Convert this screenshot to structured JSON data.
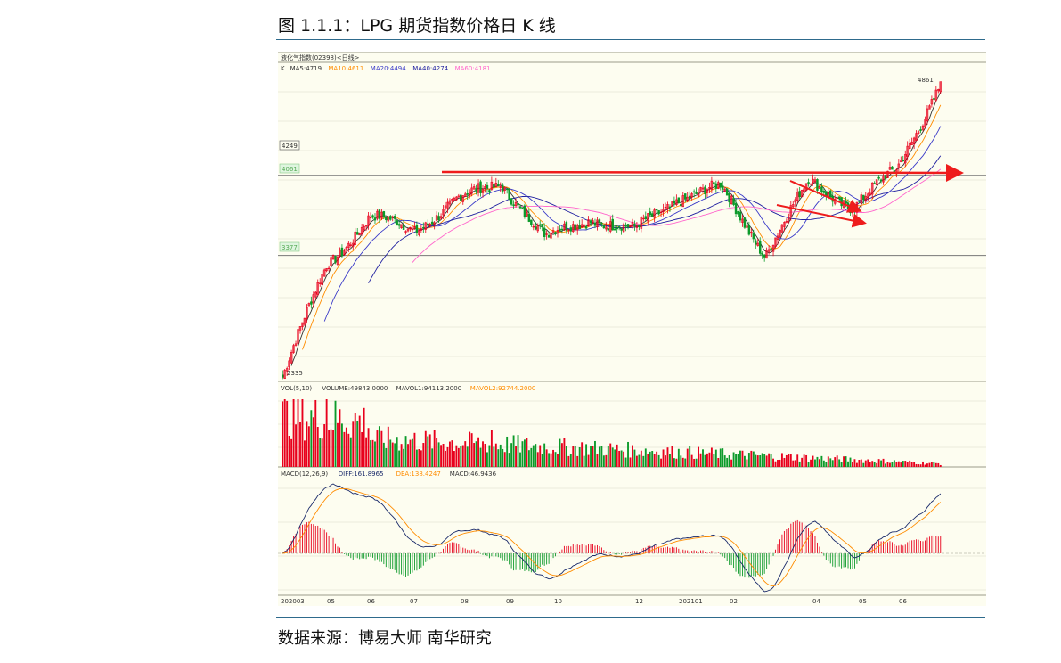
{
  "caption": "图 1.1.1：LPG 期货指数价格日 K 线",
  "source": "数据来源：博易大师 南华研究",
  "colors": {
    "up": "#e8001c",
    "down": "#0c9a2a",
    "panel_bg": "#fdfdf0",
    "grid": "#d9d9c8",
    "rule": "#2e6a8c",
    "ma5": "#333333",
    "ma10": "#ff8c00",
    "ma20": "#3a3ac8",
    "ma40": "#2020a0",
    "ma60": "#ff66cc",
    "arrow": "#ee1c1c",
    "diff": "#1a2a6a",
    "dea": "#ff8c00"
  },
  "chart_data": [
    {
      "type": "candlestick",
      "header": "液化气指数(02398)<日线>",
      "ma_legend": [
        {
          "name": "K",
          "text": "K"
        },
        {
          "name": "MA5",
          "text": "MA5:4719"
        },
        {
          "name": "MA10",
          "text": "MA10:4611"
        },
        {
          "name": "MA20",
          "text": "MA20:4494"
        },
        {
          "name": "MA40",
          "text": "MA40:4274"
        },
        {
          "name": "MA60",
          "text": "MA60:4181"
        }
      ],
      "price_labels": {
        "high": "4861",
        "low": "2335",
        "level_a": "4249",
        "level_b": "4061",
        "level_c": "3377"
      },
      "ylim": [
        2300,
        4950
      ],
      "x_tick_labels": [
        "202003",
        "05",
        "06",
        "07",
        "08",
        "09",
        "10",
        "12",
        "202101",
        "02",
        "04",
        "05",
        "06"
      ],
      "keypoints": [
        {
          "date": "202003",
          "close": 2335
        },
        {
          "date": "04",
          "close": 3300
        },
        {
          "date": "05",
          "close": 3700
        },
        {
          "date": "06",
          "close": 3600
        },
        {
          "date": "07",
          "close": 3850
        },
        {
          "date": "08",
          "close": 4000
        },
        {
          "date": "09",
          "close": 3520
        },
        {
          "date": "10",
          "close": 3700
        },
        {
          "date": "11",
          "close": 3580
        },
        {
          "date": "12",
          "close": 3870
        },
        {
          "date": "202101",
          "close": 3950
        },
        {
          "date": "02",
          "close": 3400
        },
        {
          "date": "03",
          "close": 4000
        },
        {
          "date": "04",
          "close": 3800
        },
        {
          "date": "05",
          "close": 4100
        },
        {
          "date": "06",
          "close": 4861
        }
      ]
    },
    {
      "type": "bar",
      "header_parts": [
        {
          "name": "VOL",
          "text": "VOL(5,10)"
        },
        {
          "name": "VOLUME",
          "text": "VOLUME:49843.0000"
        },
        {
          "name": "MAVOL1",
          "text": "MAVOL1:94113.2000"
        },
        {
          "name": "MAVOL2",
          "text": "MAVOL2:92744.2000"
        }
      ]
    },
    {
      "type": "line",
      "header_parts": [
        {
          "name": "MACD",
          "text": "MACD(12,26,9)"
        },
        {
          "name": "DIFF",
          "text": "DIFF:161.8965"
        },
        {
          "name": "DEA",
          "text": "DEA:138.4247"
        },
        {
          "name": "MACDV",
          "text": "MACD:46.9436"
        }
      ]
    }
  ]
}
